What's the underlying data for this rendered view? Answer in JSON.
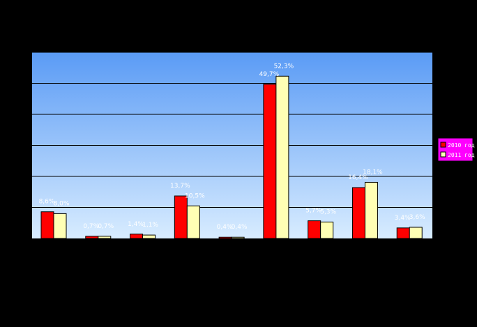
{
  "chart_data": {
    "type": "bar",
    "title": "",
    "xlabel": "",
    "ylabel": "",
    "ylim": [
      0,
      60
    ],
    "grid": true,
    "legend_position": "right",
    "categories": [
      "",
      "",
      "",
      "",
      "",
      "",
      "",
      "",
      ""
    ],
    "series": [
      {
        "name": "2010 год",
        "color": "#FF0000",
        "values": [
          8.6,
          0.7,
          1.4,
          13.7,
          0.4,
          49.7,
          5.7,
          16.4,
          3.4
        ],
        "labels": [
          "8,6%",
          "0,7%",
          "1,4%",
          "13,7%",
          "0,4%",
          "49,7%",
          "5,7%",
          "16,4%",
          "3,4%"
        ]
      },
      {
        "name": "2011 год",
        "color": "#FFFFB4",
        "values": [
          8.0,
          0.7,
          1.1,
          10.5,
          0.4,
          52.3,
          5.3,
          18.1,
          3.6
        ],
        "labels": [
          "8,0%",
          "0,7%",
          "1,1%",
          "10,5%",
          "0,4%",
          "52,3%",
          "5,3%",
          "18,1%",
          "3,6%"
        ]
      }
    ],
    "plot_gradient": [
      "#5A9BF5",
      "#D8ECFF"
    ],
    "legend_background": "#FF00FF"
  }
}
